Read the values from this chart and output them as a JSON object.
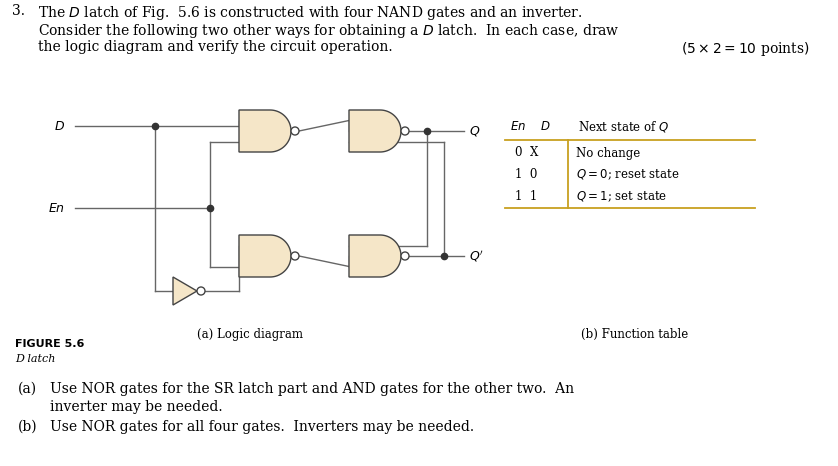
{
  "background_color": "#ffffff",
  "gate_fill": "#f5e6c8",
  "gate_edge": "#444444",
  "wire_color": "#666666",
  "dot_color": "#333333",
  "table_line_color": "#c8a020",
  "fs_body": 10,
  "fs_small": 8.5,
  "fs_label": 9,
  "diagram_label": "(a) Logic diagram",
  "table_label": "(b) Function table",
  "figure_label": "FIGURE 5.6",
  "figure_sublabel": "D latch",
  "part_a_line1": "(a)  Use NOR gates for the SR latch part and AND gates for the other two.  An",
  "part_a_line2": "inverter may be needed.",
  "part_b": "(b)  Use NOR gates for all four gates.  Inverters may be needed."
}
